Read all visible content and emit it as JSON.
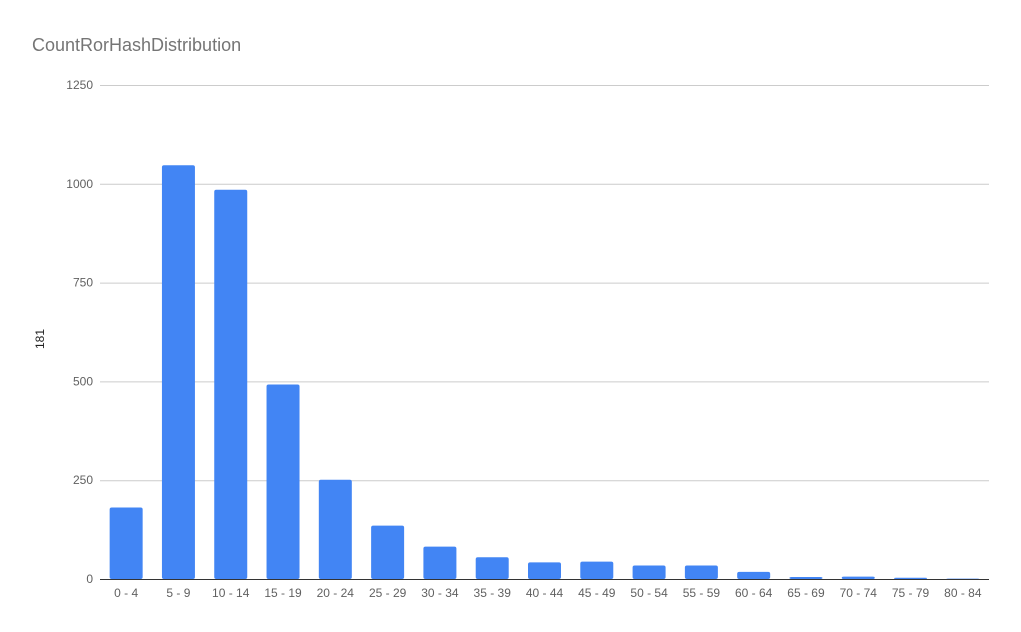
{
  "chart_data": {
    "type": "bar",
    "title": "CountRorHashDistribution",
    "xlabel": "",
    "ylabel": "181",
    "categories": [
      "0 - 4",
      "5 - 9",
      "10 - 14",
      "15 - 19",
      "20 - 24",
      "25 - 29",
      "30 - 34",
      "35 - 39",
      "40 - 44",
      "45 - 49",
      "50 - 54",
      "55 - 59",
      "60 - 64",
      "65 - 69",
      "70 - 74",
      "75 - 79",
      "80 - 84"
    ],
    "values": [
      181,
      1047,
      985,
      492,
      251,
      135,
      82,
      55,
      42,
      44,
      34,
      34,
      18,
      5,
      6,
      3,
      1
    ],
    "ylim": [
      0,
      1250
    ],
    "yticks": [
      0,
      250,
      500,
      750,
      1000,
      1250
    ],
    "grid": true,
    "legend": "none",
    "bar_color": "#4285F4"
  }
}
